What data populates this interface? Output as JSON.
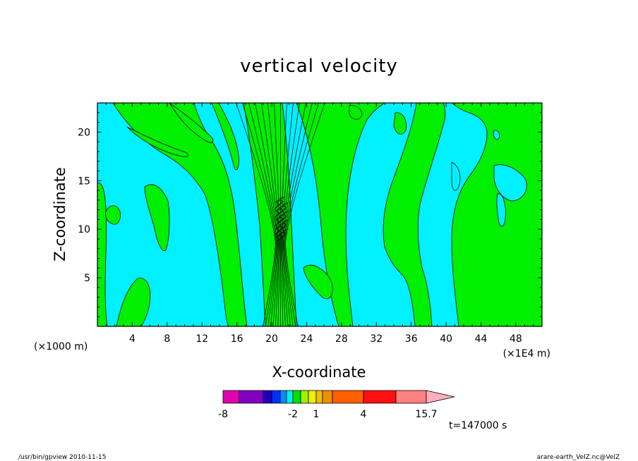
{
  "chart_data": {
    "type": "heatmap",
    "title": "vertical velocity",
    "xlabel": "X-coordinate",
    "ylabel": "Z-coordinate",
    "x_unit": "(×1E4 m)",
    "y_unit": "(×1000 m)",
    "xlim": [
      0,
      51
    ],
    "ylim": [
      0,
      23
    ],
    "x_ticks": [
      4,
      8,
      12,
      16,
      20,
      24,
      28,
      32,
      36,
      40,
      44,
      48
    ],
    "y_ticks": [
      5,
      10,
      15,
      20
    ],
    "time_label": "t=147000 s",
    "colorbar": {
      "levels": [
        -8,
        -7,
        -6,
        -5,
        -4,
        -3,
        -2,
        -1,
        0,
        1,
        2,
        3,
        4,
        8,
        12,
        15.7
      ],
      "colors": [
        "#e000b0",
        "#8000c0",
        "#2000c0",
        "#0030ff",
        "#0090ff",
        "#00f0f0",
        "#00e000",
        "#a0f000",
        "#f0f000",
        "#f0c000",
        "#f09000",
        "#ff6000",
        "#ff1010",
        "#ff8080",
        "#ffb0c0"
      ],
      "tick_labels": [
        "-8",
        "-2",
        "1",
        "4",
        "15.7"
      ]
    },
    "fields": {
      "negative_color": "#00f0ff",
      "positive_color": "#00f000"
    }
  },
  "footer": {
    "left": "/usr/bin/gpview   2010-11-15",
    "right": "arare-earth_VelZ.nc@VelZ"
  }
}
